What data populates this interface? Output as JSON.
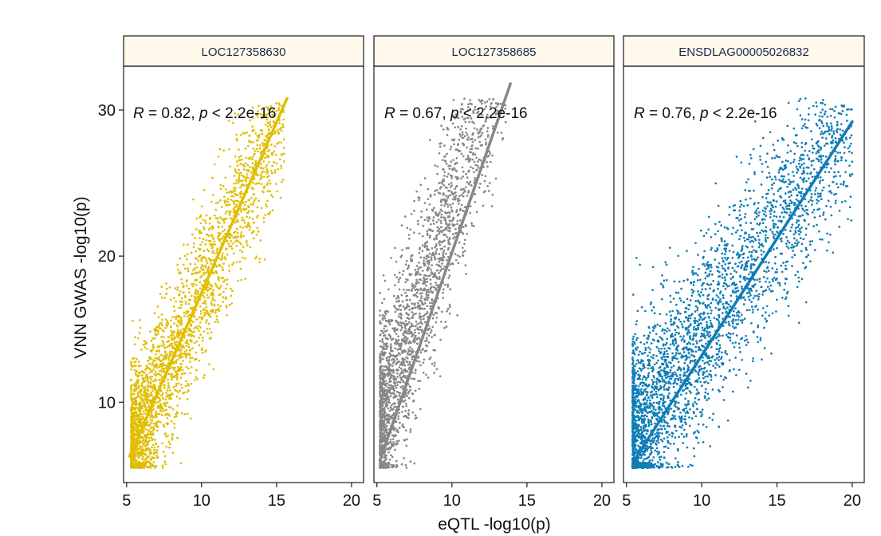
{
  "chart_data": {
    "type": "scatter",
    "ylabel": "VNN GWAS -log10(p)",
    "xlabel": "eQTL -log10(p)",
    "ylim": [
      4.5,
      33
    ],
    "xlim": [
      4.8,
      20.8
    ],
    "yticks": [
      10,
      20,
      30
    ],
    "ytick_labels": [
      "10",
      "20",
      "30"
    ],
    "xticks": [
      5,
      10,
      15,
      20
    ],
    "xtick_labels": [
      "5",
      "10",
      "15",
      "20"
    ],
    "grid": false,
    "panels": [
      {
        "strip_label": "LOC127358630",
        "color": "#E0BE00",
        "annotation": {
          "r_label": "R",
          "r_text": " = 0.82, ",
          "p_label": "p",
          "p_text": " < 2.2e-16"
        },
        "r_value": 0.82,
        "fit_line": {
          "x": [
            5.2,
            15.7
          ],
          "y": [
            6.3,
            30.8
          ]
        },
        "point_cloud": {
          "x_min": 5.3,
          "x_max": 15.5,
          "y_min": 5.5,
          "y_max": 30.5,
          "slope": 2.3,
          "intercept": -5.5,
          "spread": 2.6,
          "n": 2600
        }
      },
      {
        "strip_label": "LOC127358685",
        "color": "#878787",
        "annotation": {
          "r_label": "R",
          "r_text": " = 0.67, ",
          "p_label": "p",
          "p_text": " < 2.2e-16"
        },
        "r_value": 0.67,
        "fit_line": {
          "x": [
            5.2,
            13.9
          ],
          "y": [
            6.0,
            31.8
          ]
        },
        "point_cloud": {
          "x_min": 5.2,
          "x_max": 13.6,
          "y_min": 5.5,
          "y_max": 30.8,
          "slope": 3.1,
          "intercept": -7.5,
          "spread": 3.2,
          "n": 2400
        }
      },
      {
        "strip_label": "ENSDLAG00005026832",
        "color": "#0F7DB5",
        "annotation": {
          "r_label": "R",
          "r_text": " = 0.76, ",
          "p_label": "p",
          "p_text": " < 2.2e-16"
        },
        "r_value": 0.76,
        "fit_line": {
          "x": [
            5.5,
            20.0
          ],
          "y": [
            6.0,
            29.2
          ]
        },
        "point_cloud": {
          "x_min": 5.4,
          "x_max": 20.0,
          "y_min": 5.5,
          "y_max": 30.8,
          "slope": 1.55,
          "intercept": -1.0,
          "spread": 3.2,
          "n": 3200
        }
      }
    ]
  }
}
